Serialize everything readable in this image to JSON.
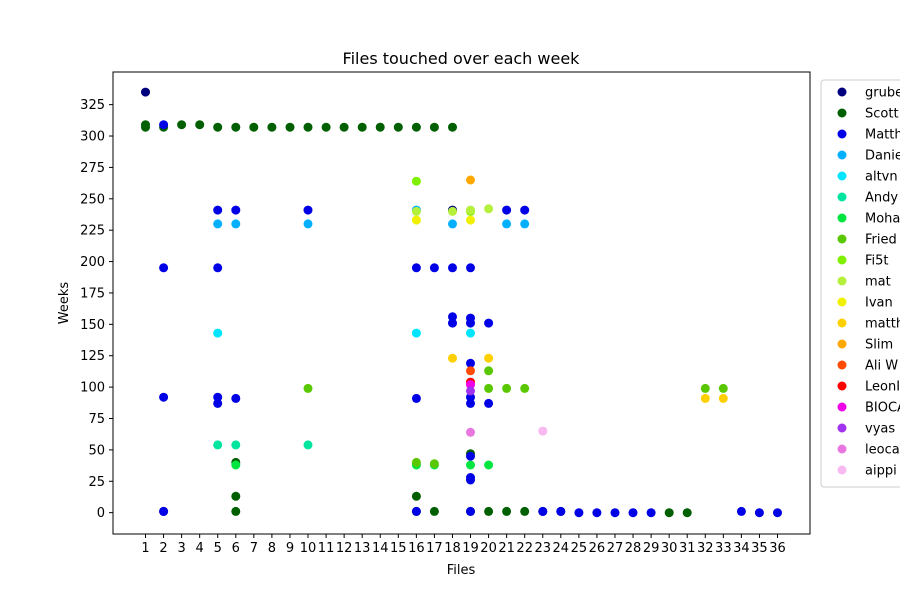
{
  "chart_data": {
    "type": "scatter",
    "title": "Files touched over each week",
    "xlabel": "Files",
    "ylabel": "Weeks",
    "x_ticks": [
      1,
      2,
      3,
      4,
      5,
      6,
      7,
      8,
      9,
      10,
      11,
      12,
      13,
      14,
      15,
      16,
      17,
      18,
      19,
      20,
      21,
      22,
      23,
      24,
      25,
      26,
      27,
      28,
      29,
      30,
      31,
      32,
      33,
      34,
      35,
      36
    ],
    "y_ticks": [
      0,
      25,
      50,
      75,
      100,
      125,
      150,
      175,
      200,
      225,
      250,
      275,
      300,
      325
    ],
    "xlim": [
      -0.8,
      37.8
    ],
    "ylim": [
      -17,
      351
    ],
    "grid": false,
    "legend_placement": "outside-right",
    "series": [
      {
        "name": "grube",
        "color": "#00007f",
        "points": [
          [
            1,
            335
          ],
          [
            2,
            1
          ],
          [
            18,
            241
          ],
          [
            23,
            1
          ],
          [
            24,
            1
          ]
        ]
      },
      {
        "name": "Scott",
        "color": "#005f00",
        "points": [
          [
            1,
            307
          ],
          [
            1,
            309
          ],
          [
            2,
            307
          ],
          [
            3,
            309
          ],
          [
            4,
            309
          ],
          [
            5,
            307
          ],
          [
            6,
            307
          ],
          [
            7,
            307
          ],
          [
            8,
            307
          ],
          [
            9,
            307
          ],
          [
            10,
            307
          ],
          [
            11,
            307
          ],
          [
            12,
            307
          ],
          [
            13,
            307
          ],
          [
            14,
            307
          ],
          [
            15,
            307
          ],
          [
            16,
            307
          ],
          [
            17,
            307
          ],
          [
            18,
            307
          ],
          [
            6,
            40
          ],
          [
            6,
            13
          ],
          [
            6,
            1
          ],
          [
            16,
            13
          ],
          [
            16,
            1
          ],
          [
            17,
            1
          ],
          [
            19,
            47
          ],
          [
            19,
            1
          ],
          [
            20,
            1
          ],
          [
            21,
            1
          ],
          [
            22,
            1
          ],
          [
            30,
            0
          ],
          [
            31,
            0
          ]
        ]
      },
      {
        "name": "Matth",
        "color": "#0000e6",
        "points": [
          [
            2,
            309
          ],
          [
            2,
            195
          ],
          [
            2,
            92
          ],
          [
            2,
            1
          ],
          [
            5,
            241
          ],
          [
            5,
            195
          ],
          [
            5,
            92
          ],
          [
            5,
            87
          ],
          [
            6,
            241
          ],
          [
            6,
            91
          ],
          [
            10,
            241
          ],
          [
            16,
            195
          ],
          [
            16,
            91
          ],
          [
            16,
            1
          ],
          [
            17,
            195
          ],
          [
            18,
            195
          ],
          [
            18,
            156
          ],
          [
            18,
            151
          ],
          [
            19,
            195
          ],
          [
            19,
            155
          ],
          [
            19,
            151
          ],
          [
            19,
            119
          ],
          [
            19,
            92
          ],
          [
            19,
            87
          ],
          [
            19,
            45
          ],
          [
            19,
            28
          ],
          [
            19,
            26
          ],
          [
            19,
            1
          ],
          [
            20,
            151
          ],
          [
            20,
            87
          ],
          [
            21,
            241
          ],
          [
            22,
            241
          ],
          [
            23,
            1
          ],
          [
            24,
            1
          ],
          [
            25,
            0
          ],
          [
            26,
            0
          ],
          [
            27,
            0
          ],
          [
            28,
            0
          ],
          [
            29,
            0
          ],
          [
            34,
            1
          ],
          [
            35,
            0
          ],
          [
            36,
            0
          ]
        ]
      },
      {
        "name": "Danie",
        "color": "#00b0ff",
        "points": [
          [
            5,
            230
          ],
          [
            6,
            230
          ],
          [
            10,
            230
          ],
          [
            16,
            241
          ],
          [
            18,
            230
          ],
          [
            21,
            230
          ],
          [
            22,
            230
          ]
        ]
      },
      {
        "name": "altvn",
        "color": "#00e5ff",
        "points": [
          [
            5,
            143
          ],
          [
            16,
            143
          ],
          [
            19,
            143
          ]
        ]
      },
      {
        "name": "Andy",
        "color": "#00e5a0",
        "points": [
          [
            5,
            54
          ],
          [
            6,
            54
          ],
          [
            10,
            54
          ]
        ]
      },
      {
        "name": "Moha",
        "color": "#00e640",
        "points": [
          [
            6,
            38
          ],
          [
            16,
            38
          ],
          [
            17,
            38
          ],
          [
            19,
            38
          ],
          [
            20,
            38
          ]
        ]
      },
      {
        "name": "Fried",
        "color": "#5ac800",
        "points": [
          [
            10,
            99
          ],
          [
            16,
            40
          ],
          [
            17,
            39
          ],
          [
            20,
            99
          ],
          [
            20,
            113
          ],
          [
            21,
            99
          ],
          [
            22,
            99
          ],
          [
            32,
            99
          ],
          [
            33,
            99
          ]
        ]
      },
      {
        "name": "Fi5t",
        "color": "#7ff000",
        "points": [
          [
            16,
            264
          ],
          [
            19,
            240
          ]
        ]
      },
      {
        "name": "mat",
        "color": "#b4f03c",
        "points": [
          [
            16,
            240
          ],
          [
            18,
            240
          ],
          [
            19,
            241
          ],
          [
            20,
            242
          ]
        ]
      },
      {
        "name": "Ivan",
        "color": "#f0f000",
        "points": [
          [
            16,
            233
          ],
          [
            19,
            233
          ]
        ]
      },
      {
        "name": "matth",
        "color": "#ffd000",
        "points": [
          [
            18,
            123
          ],
          [
            20,
            123
          ],
          [
            32,
            91
          ],
          [
            33,
            91
          ]
        ]
      },
      {
        "name": "Slim",
        "color": "#ffa800",
        "points": [
          [
            19,
            265
          ]
        ]
      },
      {
        "name": "Ali W",
        "color": "#ff4a00",
        "points": [
          [
            19,
            113
          ]
        ]
      },
      {
        "name": "LeonI",
        "color": "#ff0000",
        "points": [
          [
            19,
            104
          ]
        ]
      },
      {
        "name": "BIOCA",
        "color": "#f000e8",
        "points": [
          [
            19,
            102
          ]
        ]
      },
      {
        "name": "vyas",
        "color": "#a032f0",
        "points": [
          [
            19,
            97
          ]
        ]
      },
      {
        "name": "leoca",
        "color": "#e878e0",
        "points": [
          [
            19,
            64
          ]
        ]
      },
      {
        "name": "aippi",
        "color": "#f8b8f0",
        "points": [
          [
            23,
            65
          ]
        ]
      }
    ]
  }
}
